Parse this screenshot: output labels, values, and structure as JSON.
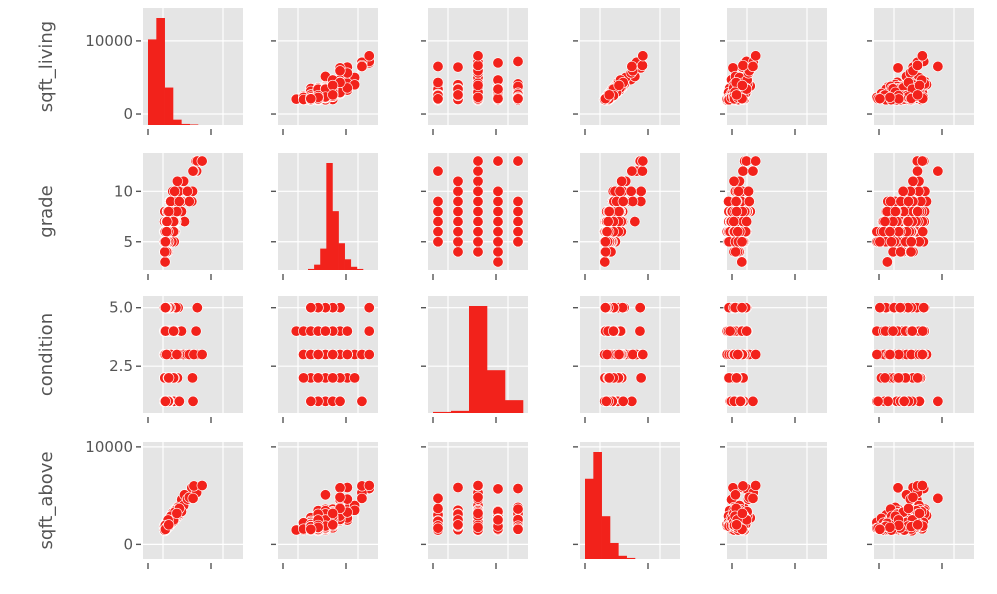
{
  "chart_data": {
    "type": "scatter",
    "variables": [
      "sqft_living",
      "grade",
      "condition",
      "sqft_above"
    ],
    "columns_shown": 6,
    "marker_color": "#f2221b",
    "panel_color": "#e5e5e5",
    "grid": true,
    "y_ticks": {
      "sqft_living": [
        {
          "v": 0,
          "label": "0"
        },
        {
          "v": 10000,
          "label": "10000"
        }
      ],
      "grade": [
        {
          "v": 5,
          "label": "5"
        },
        {
          "v": 10,
          "label": "10"
        }
      ],
      "condition": [
        {
          "v": 2.5,
          "label": "2.5"
        },
        {
          "v": 5.0,
          "label": "5.0"
        }
      ],
      "sqft_above": [
        {
          "v": 0,
          "label": "0"
        },
        {
          "v": 10000,
          "label": "10000"
        }
      ]
    },
    "histograms": {
      "sqft_living": {
        "counts": [
          0.8,
          1.0,
          0.35,
          0.05,
          0.01,
          0.005
        ]
      },
      "grade": {
        "counts": [
          0.01,
          0.05,
          0.2,
          1.0,
          0.55,
          0.25,
          0.1,
          0.03,
          0.01
        ]
      },
      "condition": {
        "counts": [
          0.01,
          0.02,
          1.0,
          0.4,
          0.12
        ]
      },
      "sqft_above": {
        "counts": [
          0.75,
          1.0,
          0.4,
          0.15,
          0.03,
          0.01
        ]
      }
    }
  }
}
